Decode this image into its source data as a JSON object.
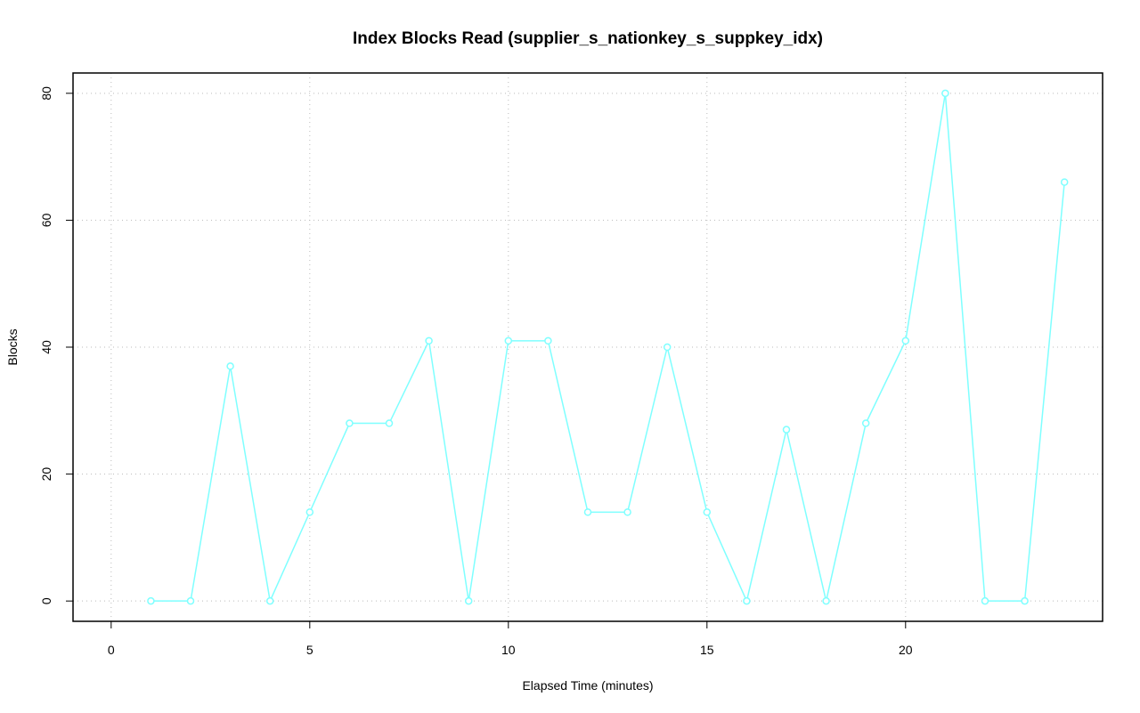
{
  "chart_data": {
    "type": "line",
    "title": "Index Blocks Read (supplier_s_nationkey_s_suppkey_idx)",
    "x_label": "Elapsed Time (minutes)",
    "y_label": "Blocks",
    "x": [
      1,
      2,
      3,
      4,
      5,
      6,
      7,
      8,
      9,
      10,
      11,
      12,
      13,
      14,
      15,
      16,
      17,
      18,
      19,
      20,
      21,
      22,
      23,
      24
    ],
    "series": [
      {
        "color": "#7fffff",
        "values": [
          0,
          0,
          37,
          0,
          14,
          28,
          28,
          41,
          0,
          41,
          41,
          14,
          14,
          40,
          14,
          0,
          27,
          0,
          28,
          41,
          80,
          0,
          0,
          66
        ]
      }
    ],
    "xlim": [
      -0.96,
      24.96
    ],
    "ylim": [
      -3.2,
      83.2
    ],
    "xticks": [
      0,
      5,
      10,
      15,
      20
    ],
    "yticks": [
      0,
      20,
      40,
      60,
      80
    ],
    "grid": true
  }
}
